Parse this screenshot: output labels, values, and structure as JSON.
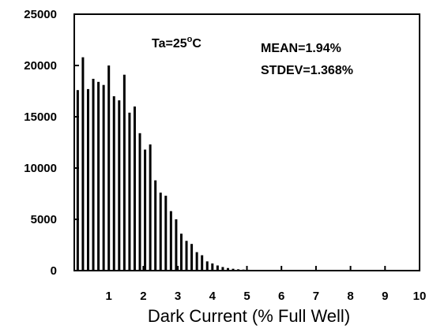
{
  "chart_data": {
    "type": "bar",
    "xlabel": "Dark Current (% Full Well)",
    "ylabel": "",
    "xlim": [
      0,
      10
    ],
    "ylim": [
      0,
      25000
    ],
    "xticks": [
      1,
      2,
      3,
      4,
      5,
      6,
      7,
      8,
      9,
      10
    ],
    "xtick_labels": [
      "1",
      "2",
      "3",
      "4",
      "5",
      "6",
      "7",
      "8",
      "9",
      "10"
    ],
    "yticks": [
      0,
      5000,
      10000,
      15000,
      20000,
      25000
    ],
    "ytick_labels": [
      "0",
      "5000",
      "10000",
      "15000",
      "20000",
      "25000"
    ],
    "grid": false,
    "bar_color": "#000000",
    "annotations": {
      "temp_prefix": "Ta=25",
      "temp_sup": "o",
      "temp_suffix": "C",
      "mean": "MEAN=1.94%",
      "stdev": "STDEV=1.368%"
    },
    "x": [
      0.1,
      0.25,
      0.4,
      0.55,
      0.7,
      0.85,
      1.0,
      1.15,
      1.3,
      1.45,
      1.6,
      1.75,
      1.9,
      2.05,
      2.2,
      2.35,
      2.5,
      2.65,
      2.8,
      2.95,
      3.1,
      3.25,
      3.4,
      3.55,
      3.7,
      3.85,
      4.0,
      4.15,
      4.3,
      4.45,
      4.6,
      4.75,
      4.9,
      5.05,
      5.2,
      5.35,
      5.5,
      5.65,
      5.8,
      5.95,
      6.1,
      6.25,
      6.4,
      6.55,
      6.7,
      6.85,
      7.0,
      7.15,
      7.3,
      7.45,
      7.6,
      7.75,
      7.9,
      8.05,
      8.2,
      8.35,
      8.5,
      8.65,
      8.8,
      8.95,
      9.1,
      9.25,
      9.4,
      9.55,
      9.7,
      9.85
    ],
    "values": [
      17600,
      20800,
      17700,
      18700,
      18400,
      18100,
      20000,
      17000,
      16600,
      19100,
      15400,
      16000,
      13400,
      11800,
      12300,
      8800,
      7600,
      7300,
      5800,
      5000,
      3600,
      2900,
      2600,
      1800,
      1500,
      900,
      700,
      500,
      350,
      250,
      180,
      130,
      100,
      80,
      60,
      50,
      40,
      30,
      25,
      20,
      15,
      12,
      10,
      8,
      6,
      5,
      4,
      3,
      3,
      2,
      2,
      2,
      1,
      1,
      1,
      1,
      1,
      1,
      1,
      1,
      1,
      1,
      1,
      1,
      1,
      1
    ]
  }
}
